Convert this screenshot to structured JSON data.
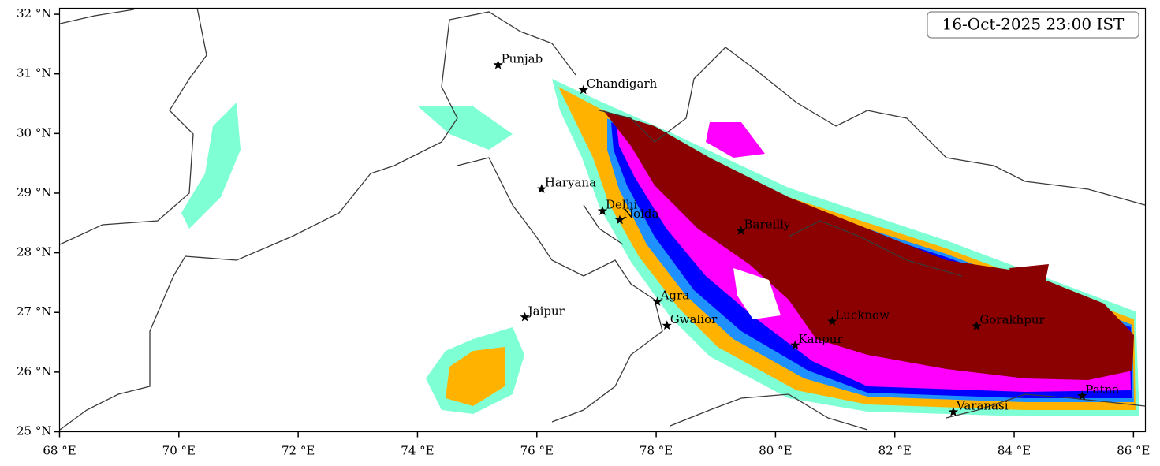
{
  "map": {
    "title": "16-Oct-2025 23:00 IST",
    "xlim": [
      68,
      86.2
    ],
    "ylim": [
      25,
      32.1
    ],
    "xticks": [
      {
        "value": 68,
        "label": "68 °E"
      },
      {
        "value": 70,
        "label": "70 °E"
      },
      {
        "value": 72,
        "label": "72 °E"
      },
      {
        "value": 74,
        "label": "74 °E"
      },
      {
        "value": 76,
        "label": "76 °E"
      },
      {
        "value": 78,
        "label": "78 °E"
      },
      {
        "value": 80,
        "label": "80 °E"
      },
      {
        "value": 82,
        "label": "82 °E"
      },
      {
        "value": 84,
        "label": "84 °E"
      },
      {
        "value": 86,
        "label": "86 °E"
      }
    ],
    "yticks": [
      {
        "value": 25,
        "label": "25 °N"
      },
      {
        "value": 26,
        "label": "26 °N"
      },
      {
        "value": 27,
        "label": "27 °N"
      },
      {
        "value": 28,
        "label": "28 °N"
      },
      {
        "value": 29,
        "label": "29 °N"
      },
      {
        "value": 30,
        "label": "30 °N"
      },
      {
        "value": 31,
        "label": "31 °N"
      },
      {
        "value": 32,
        "label": "32 °N"
      }
    ],
    "cities": [
      {
        "name": "Punjab",
        "lon": 75.35,
        "lat": 31.15
      },
      {
        "name": "Chandigarh",
        "lon": 76.78,
        "lat": 30.73
      },
      {
        "name": "Haryana",
        "lon": 76.08,
        "lat": 29.07
      },
      {
        "name": "Delhi",
        "lon": 77.1,
        "lat": 28.7
      },
      {
        "name": "Noida",
        "lon": 77.39,
        "lat": 28.55
      },
      {
        "name": "Bareilly",
        "lon": 79.42,
        "lat": 28.37
      },
      {
        "name": "Agra",
        "lon": 78.02,
        "lat": 27.18
      },
      {
        "name": "Jaipur",
        "lon": 75.8,
        "lat": 26.92
      },
      {
        "name": "Gwalior",
        "lon": 78.18,
        "lat": 26.78
      },
      {
        "name": "Lucknow",
        "lon": 80.95,
        "lat": 26.85
      },
      {
        "name": "Kanpur",
        "lon": 80.33,
        "lat": 26.45
      },
      {
        "name": "Gorakhpur",
        "lon": 83.37,
        "lat": 26.77
      },
      {
        "name": "Varanasi",
        "lon": 82.98,
        "lat": 25.33
      },
      {
        "name": "Patna",
        "lon": 85.14,
        "lat": 25.6
      }
    ]
  }
}
